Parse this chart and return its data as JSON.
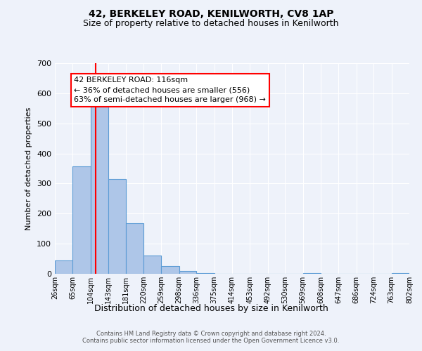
{
  "title": "42, BERKELEY ROAD, KENILWORTH, CV8 1AP",
  "subtitle": "Size of property relative to detached houses in Kenilworth",
  "xlabel": "Distribution of detached houses by size in Kenilworth",
  "ylabel": "Number of detached properties",
  "bin_edges": [
    26,
    65,
    104,
    143,
    181,
    220,
    259,
    298,
    336,
    375,
    414,
    453,
    492,
    530,
    569,
    608,
    647,
    686,
    724,
    763,
    802
  ],
  "bar_heights": [
    45,
    358,
    556,
    315,
    167,
    60,
    25,
    10,
    3,
    0,
    0,
    0,
    0,
    0,
    2,
    0,
    0,
    0,
    0,
    2
  ],
  "bar_color": "#aec6e8",
  "bar_edge_color": "#5b9bd5",
  "vline_x": 116,
  "vline_color": "red",
  "annotation_line1": "42 BERKELEY ROAD: 116sqm",
  "annotation_line2": "← 36% of detached houses are smaller (556)",
  "annotation_line3": "63% of semi-detached houses are larger (968) →",
  "annotation_box_color": "white",
  "annotation_box_edge_color": "red",
  "ylim": [
    0,
    700
  ],
  "yticks": [
    0,
    100,
    200,
    300,
    400,
    500,
    600,
    700
  ],
  "tick_labels": [
    "26sqm",
    "65sqm",
    "104sqm",
    "143sqm",
    "181sqm",
    "220sqm",
    "259sqm",
    "298sqm",
    "336sqm",
    "375sqm",
    "414sqm",
    "453sqm",
    "492sqm",
    "530sqm",
    "569sqm",
    "608sqm",
    "647sqm",
    "686sqm",
    "724sqm",
    "763sqm",
    "802sqm"
  ],
  "footnote": "Contains HM Land Registry data © Crown copyright and database right 2024.\nContains public sector information licensed under the Open Government Licence v3.0.",
  "background_color": "#eef2fa",
  "grid_color": "#ffffff",
  "title_fontsize": 10,
  "subtitle_fontsize": 9,
  "xlabel_fontsize": 9,
  "ylabel_fontsize": 8,
  "tick_fontsize": 7,
  "footnote_fontsize": 6,
  "annotation_fontsize": 8
}
